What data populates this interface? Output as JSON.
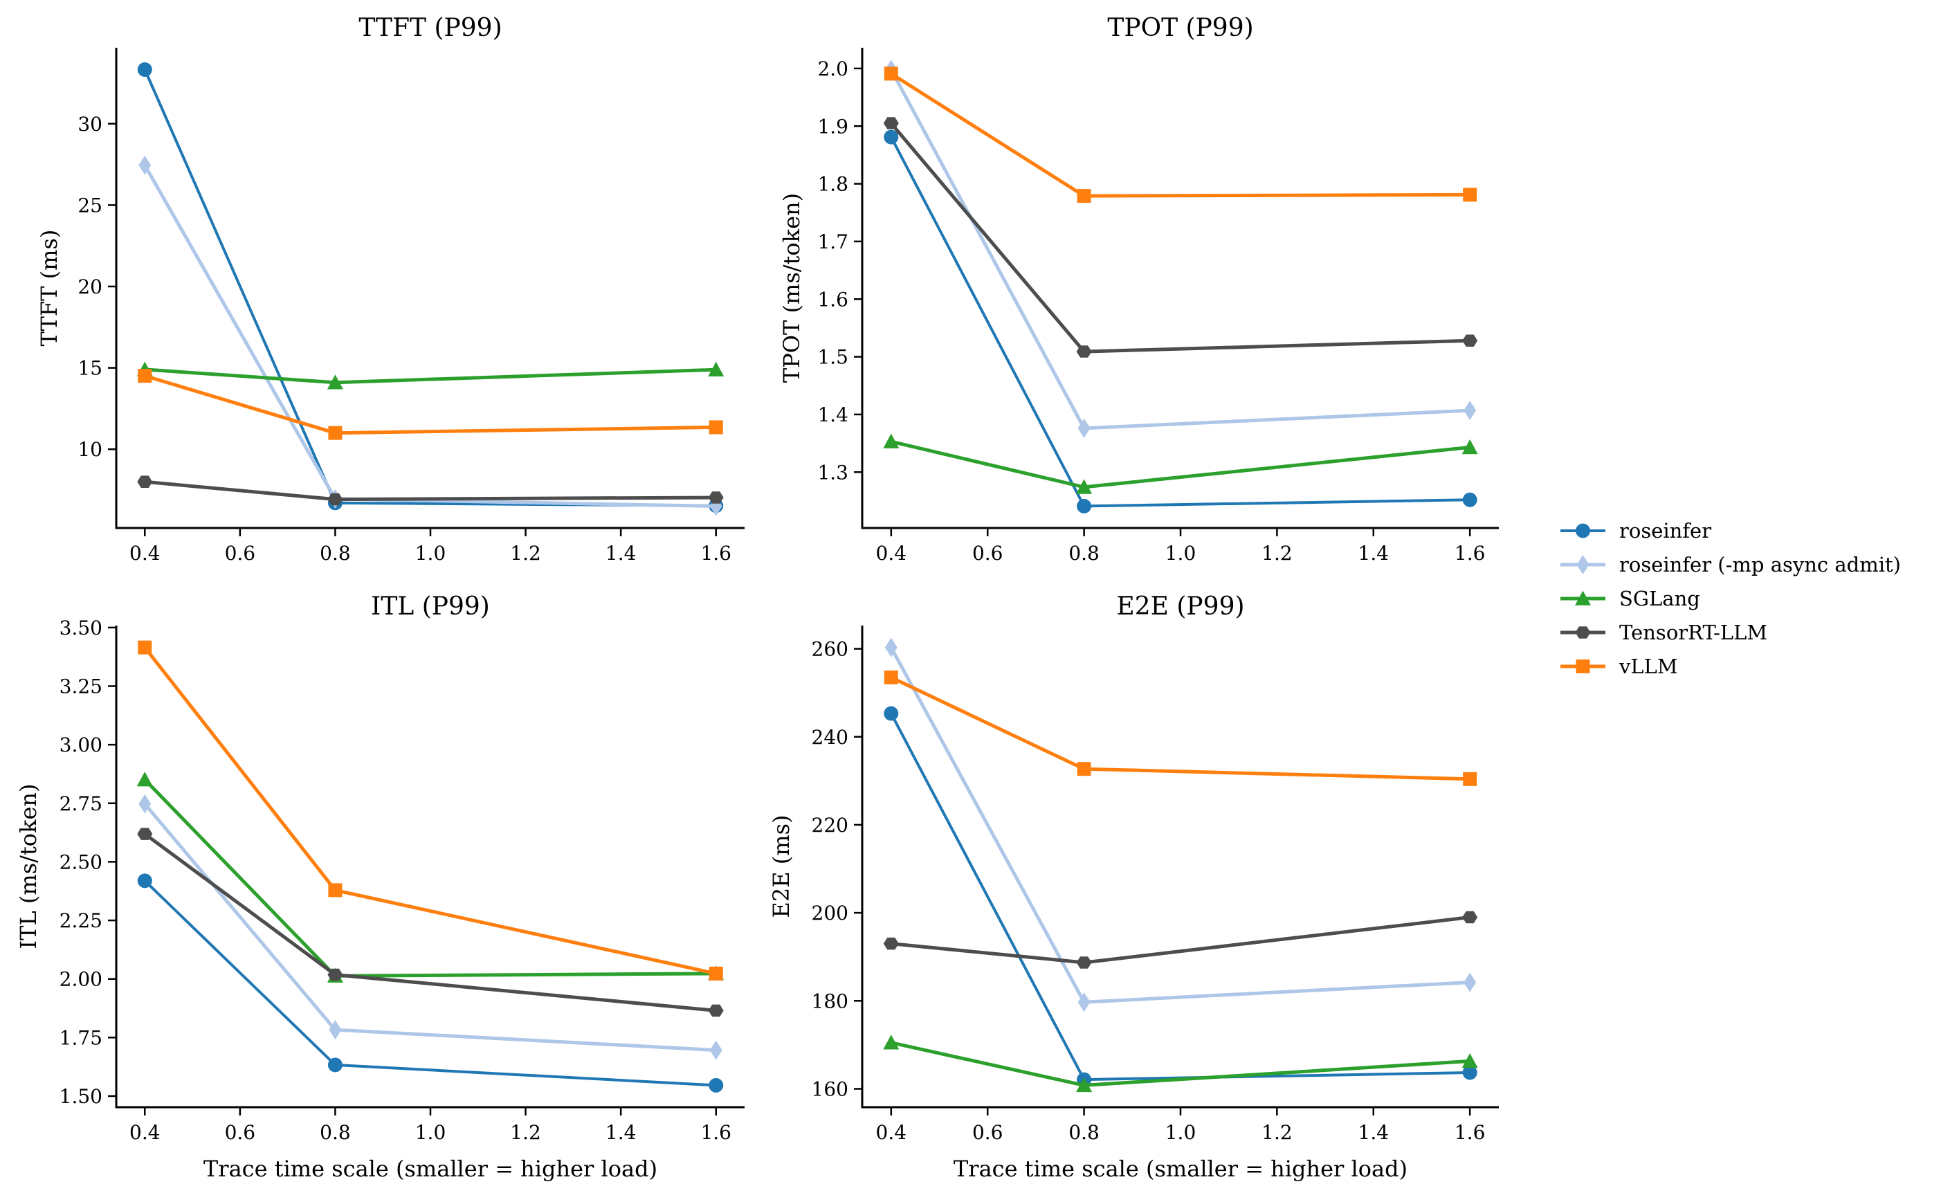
{
  "figure": {
    "legend": {
      "placement": "center-right"
    }
  },
  "series_styles": [
    {
      "name": "roseinfer",
      "color": "#1f77b4",
      "marker": "circle",
      "line_width": "normal"
    },
    {
      "name": "roseinfer (-mp async admit)",
      "color": "#aec7e8",
      "marker": "thin-diamond",
      "line_width": "thick"
    },
    {
      "name": "SGLang",
      "color": "#2ca02c",
      "marker": "triangle-up",
      "line_width": "thick"
    },
    {
      "name": "TensorRT-LLM",
      "color": "#4d4d4d",
      "marker": "hexagon",
      "line_width": "thick"
    },
    {
      "name": "vLLM",
      "color": "#ff7f0e",
      "marker": "square",
      "line_width": "thick"
    }
  ],
  "chart_data": [
    {
      "id": "ttft",
      "type": "line",
      "title": "TTFT (P99)",
      "xlabel": "",
      "ylabel": "TTFT (ms)",
      "x": [
        0.4,
        0.8,
        1.6
      ],
      "xticks": [
        "0.4",
        "0.6",
        "0.8",
        "1.0",
        "1.2",
        "1.4",
        "1.6"
      ],
      "xtick_values": [
        0.4,
        0.6,
        0.8,
        1.0,
        1.2,
        1.4,
        1.6
      ],
      "yticks": [
        "10",
        "15",
        "20",
        "25",
        "30"
      ],
      "ytick_values": [
        10,
        15,
        20,
        25,
        30
      ],
      "xlim": [
        0.34,
        1.66
      ],
      "ylim": [
        5.16,
        34.67
      ],
      "grid": false,
      "series": [
        {
          "name": "roseinfer",
          "values": [
            33.33,
            6.7,
            6.53
          ]
        },
        {
          "name": "roseinfer (-mp async admit)",
          "values": [
            27.45,
            6.95,
            6.5
          ]
        },
        {
          "name": "SGLang",
          "values": [
            14.9,
            14.1,
            14.89
          ]
        },
        {
          "name": "TensorRT-LLM",
          "values": [
            8.0,
            6.92,
            7.03
          ]
        },
        {
          "name": "vLLM",
          "values": [
            14.51,
            11.0,
            11.35
          ]
        }
      ]
    },
    {
      "id": "tpot",
      "type": "line",
      "title": "TPOT (P99)",
      "xlabel": "",
      "ylabel": "TPOT (ms/token)",
      "x": [
        0.4,
        0.8,
        1.6
      ],
      "xticks": [
        "0.4",
        "0.6",
        "0.8",
        "1.0",
        "1.2",
        "1.4",
        "1.6"
      ],
      "xtick_values": [
        0.4,
        0.6,
        0.8,
        1.0,
        1.2,
        1.4,
        1.6
      ],
      "yticks": [
        "1.3",
        "1.4",
        "1.5",
        "1.6",
        "1.7",
        "1.8",
        "1.9",
        "2.0"
      ],
      "ytick_values": [
        1.3,
        1.4,
        1.5,
        1.6,
        1.7,
        1.8,
        1.9,
        2.0
      ],
      "xlim": [
        0.34,
        1.66
      ],
      "ylim": [
        1.2031,
        2.0359
      ],
      "grid": false,
      "series": [
        {
          "name": "roseinfer",
          "values": [
            1.881,
            1.241,
            1.252
          ]
        },
        {
          "name": "roseinfer (-mp async admit)",
          "values": [
            1.998,
            1.376,
            1.407
          ]
        },
        {
          "name": "SGLang",
          "values": [
            1.353,
            1.274,
            1.343
          ]
        },
        {
          "name": "TensorRT-LLM",
          "values": [
            1.905,
            1.509,
            1.528
          ]
        },
        {
          "name": "vLLM",
          "values": [
            1.991,
            1.779,
            1.781
          ]
        }
      ]
    },
    {
      "id": "itl",
      "type": "line",
      "title": "ITL (P99)",
      "xlabel": "Trace time scale (smaller = higher load)",
      "ylabel": "ITL (ms/token)",
      "x": [
        0.4,
        0.8,
        1.6
      ],
      "xticks": [
        "0.4",
        "0.6",
        "0.8",
        "1.0",
        "1.2",
        "1.4",
        "1.6"
      ],
      "xtick_values": [
        0.4,
        0.6,
        0.8,
        1.0,
        1.2,
        1.4,
        1.6
      ],
      "yticks": [
        "1.50",
        "1.75",
        "2.00",
        "2.25",
        "2.50",
        "2.75",
        "3.00",
        "3.25",
        "3.50"
      ],
      "ytick_values": [
        1.5,
        1.75,
        2.0,
        2.25,
        2.5,
        2.75,
        3.0,
        3.25,
        3.5
      ],
      "xlim": [
        0.34,
        1.66
      ],
      "ylim": [
        1.4526,
        3.5085
      ],
      "grid": false,
      "series": [
        {
          "name": "roseinfer",
          "values": [
            2.419,
            1.633,
            1.546
          ]
        },
        {
          "name": "roseinfer (-mp async admit)",
          "values": [
            2.747,
            1.783,
            1.696
          ]
        },
        {
          "name": "SGLang",
          "values": [
            2.851,
            2.013,
            2.023
          ]
        },
        {
          "name": "TensorRT-LLM",
          "values": [
            2.619,
            2.018,
            1.865
          ]
        },
        {
          "name": "vLLM",
          "values": [
            3.415,
            2.379,
            2.023
          ]
        }
      ]
    },
    {
      "id": "e2e",
      "type": "line",
      "title": "E2E (P99)",
      "xlabel": "Trace time scale (smaller = higher load)",
      "ylabel": "E2E (ms)",
      "x": [
        0.4,
        0.8,
        1.6
      ],
      "xticks": [
        "0.4",
        "0.6",
        "0.8",
        "1.0",
        "1.2",
        "1.4",
        "1.6"
      ],
      "xtick_values": [
        0.4,
        0.6,
        0.8,
        1.0,
        1.2,
        1.4,
        1.6
      ],
      "yticks": [
        "160",
        "180",
        "200",
        "220",
        "240",
        "260"
      ],
      "ytick_values": [
        160,
        180,
        200,
        220,
        240,
        260
      ],
      "xlim": [
        0.34,
        1.66
      ],
      "ylim": [
        155.83,
        265.28
      ],
      "grid": false,
      "series": [
        {
          "name": "roseinfer",
          "values": [
            245.3,
            162.1,
            163.7
          ]
        },
        {
          "name": "roseinfer (-mp async admit)",
          "values": [
            260.3,
            179.7,
            184.2
          ]
        },
        {
          "name": "SGLang",
          "values": [
            170.5,
            160.8,
            166.3
          ]
        },
        {
          "name": "TensorRT-LLM",
          "values": [
            193.0,
            188.7,
            199.0
          ]
        },
        {
          "name": "vLLM",
          "values": [
            253.5,
            232.7,
            230.4
          ]
        }
      ]
    }
  ]
}
